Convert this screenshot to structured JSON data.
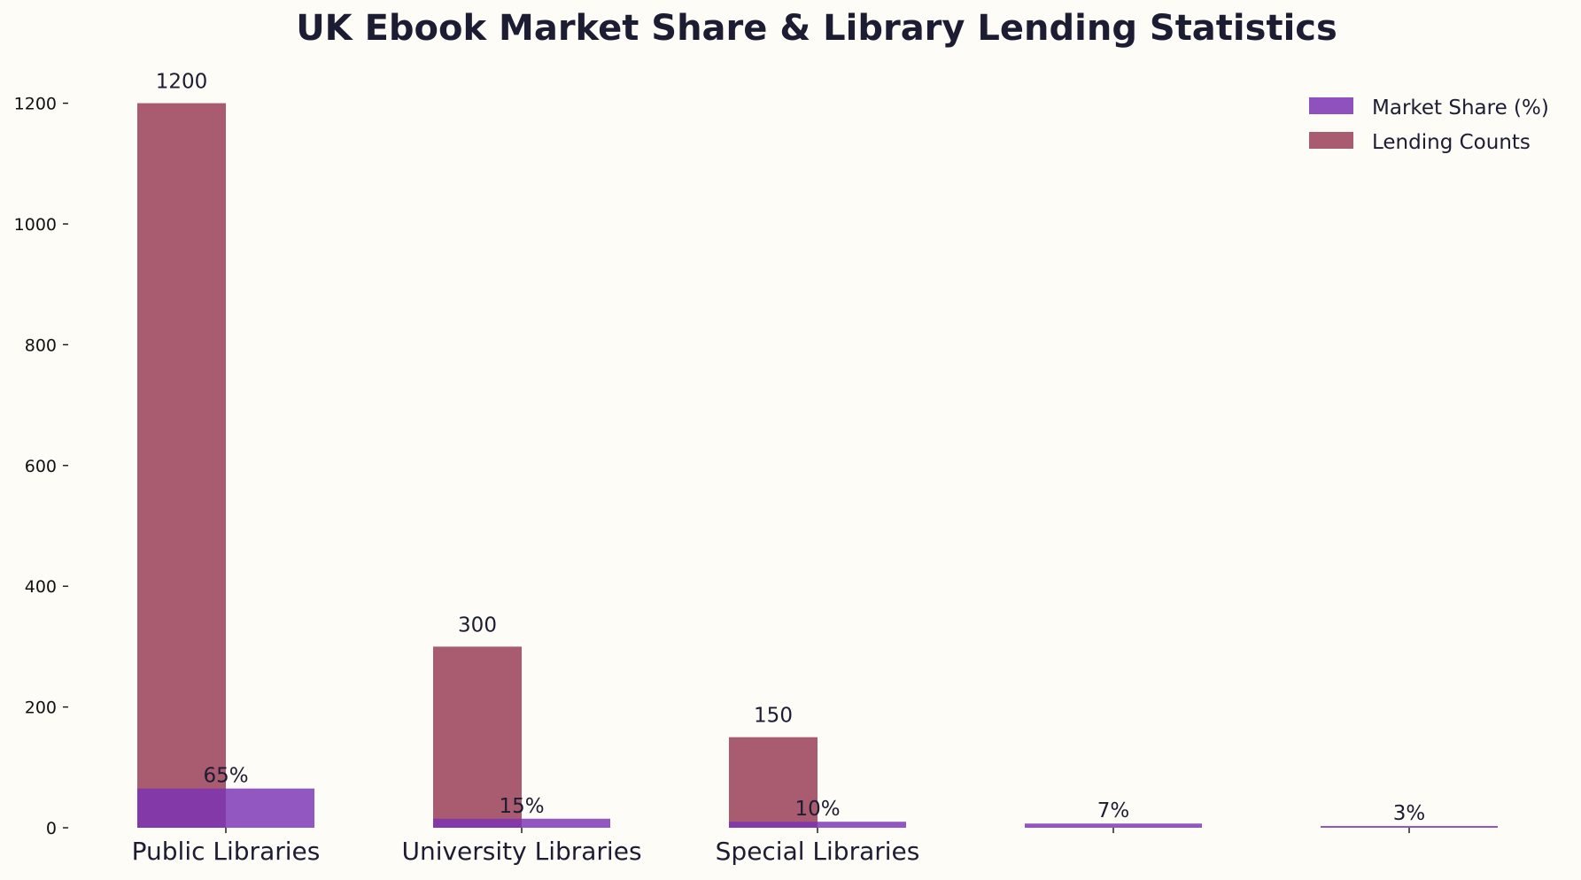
{
  "chart_data": {
    "type": "bar",
    "title": "UK Ebook Market Share & Library Lending Statistics",
    "xlabel": "",
    "ylabel": "",
    "categories": [
      "Public Libraries",
      "University Libraries",
      "Special Libraries",
      "",
      ""
    ],
    "series": [
      {
        "name": "Market Share (%)",
        "values": [
          65,
          15,
          10,
          7,
          3
        ],
        "labels": [
          "65%",
          "15%",
          "10%",
          "7%",
          "3%"
        ],
        "color": "#7b32b4"
      },
      {
        "name": "Lending Counts",
        "values": [
          1200,
          300,
          150,
          null,
          null
        ],
        "labels": [
          "1200",
          "300",
          "150",
          "",
          ""
        ],
        "color": "#800f2f"
      }
    ],
    "ylim": [
      0,
      1280
    ],
    "yticks": [
      0,
      200,
      400,
      600,
      800,
      1000,
      1200
    ],
    "grid": false,
    "legend_position": "top-right",
    "background": "#fefcf7"
  }
}
